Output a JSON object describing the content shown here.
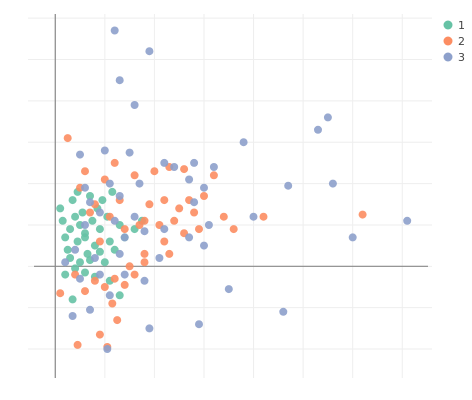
{
  "chart_data": {
    "type": "scatter",
    "title": "",
    "xlabel": "",
    "ylabel": "",
    "xlim": [
      -0.55,
      7.6
    ],
    "ylim": [
      -2.7,
      6.1
    ],
    "grid": true,
    "legend_position": "top-right",
    "series": [
      {
        "name": "1",
        "color": "#66c2a5",
        "points": [
          [
            0.1,
            1.4
          ],
          [
            0.15,
            1.1
          ],
          [
            0.2,
            0.7
          ],
          [
            0.25,
            0.4
          ],
          [
            0.3,
            0.9
          ],
          [
            0.35,
            1.6
          ],
          [
            0.4,
            1.2
          ],
          [
            0.3,
            0.2
          ],
          [
            0.45,
            0.6
          ],
          [
            0.5,
            1.0
          ],
          [
            0.55,
            1.3
          ],
          [
            0.6,
            0.8
          ],
          [
            0.65,
            0.3
          ],
          [
            0.7,
            1.7
          ],
          [
            0.75,
            1.1
          ],
          [
            0.8,
            0.5
          ],
          [
            0.85,
            1.4
          ],
          [
            0.9,
            0.9
          ],
          [
            0.95,
            1.6
          ],
          [
            1.0,
            0.1
          ],
          [
            1.05,
            1.2
          ],
          [
            1.1,
            0.6
          ],
          [
            1.15,
            1.8
          ],
          [
            0.2,
            -0.2
          ],
          [
            0.4,
            -0.05
          ],
          [
            0.6,
            -0.15
          ],
          [
            0.8,
            -0.25
          ],
          [
            0.5,
            0.1
          ],
          [
            0.7,
            0.15
          ],
          [
            1.2,
            0.4
          ],
          [
            1.3,
            1.0
          ],
          [
            1.4,
            0.7
          ],
          [
            1.6,
            0.9
          ],
          [
            1.75,
            1.1
          ],
          [
            1.1,
            -0.35
          ],
          [
            0.35,
            -0.8
          ],
          [
            1.3,
            -0.7
          ],
          [
            0.6,
            0.7
          ],
          [
            0.9,
            0.35
          ],
          [
            0.45,
            1.8
          ]
        ]
      },
      {
        "name": "2",
        "color": "#fc8d62",
        "points": [
          [
            0.25,
            3.1
          ],
          [
            0.5,
            1.9
          ],
          [
            0.6,
            2.3
          ],
          [
            0.8,
            1.5
          ],
          [
            0.9,
            0.6
          ],
          [
            1.0,
            2.1
          ],
          [
            1.1,
            1.2
          ],
          [
            1.2,
            2.5
          ],
          [
            1.3,
            1.6
          ],
          [
            1.4,
            0.9
          ],
          [
            1.5,
            0.0
          ],
          [
            1.6,
            2.2
          ],
          [
            1.7,
            1.0
          ],
          [
            1.8,
            0.3
          ],
          [
            1.9,
            1.5
          ],
          [
            2.0,
            2.3
          ],
          [
            2.1,
            1.0
          ],
          [
            2.2,
            0.6
          ],
          [
            2.3,
            2.4
          ],
          [
            2.4,
            1.1
          ],
          [
            2.5,
            1.4
          ],
          [
            2.6,
            0.8
          ],
          [
            2.7,
            1.6
          ],
          [
            2.8,
            1.3
          ],
          [
            2.9,
            0.9
          ],
          [
            3.0,
            1.7
          ],
          [
            3.2,
            2.2
          ],
          [
            3.4,
            1.2
          ],
          [
            3.6,
            0.9
          ],
          [
            0.1,
            -0.65
          ],
          [
            0.4,
            -0.2
          ],
          [
            0.6,
            -0.6
          ],
          [
            0.8,
            -0.35
          ],
          [
            1.0,
            -0.5
          ],
          [
            1.2,
            -0.3
          ],
          [
            1.4,
            -0.45
          ],
          [
            1.6,
            -0.2
          ],
          [
            1.8,
            0.1
          ],
          [
            0.45,
            -1.9
          ],
          [
            0.9,
            -1.65
          ],
          [
            1.05,
            -1.95
          ],
          [
            1.25,
            -1.3
          ],
          [
            1.15,
            -0.9
          ],
          [
            2.3,
            0.3
          ],
          [
            4.2,
            1.2
          ],
          [
            6.2,
            1.25
          ],
          [
            2.6,
            2.35
          ],
          [
            1.8,
            1.1
          ],
          [
            2.2,
            1.6
          ],
          [
            0.7,
            1.3
          ]
        ]
      },
      {
        "name": "3",
        "color": "#8da0cb",
        "points": [
          [
            1.2,
            5.7
          ],
          [
            1.9,
            5.2
          ],
          [
            1.3,
            4.5
          ],
          [
            1.6,
            3.9
          ],
          [
            2.4,
            2.4
          ],
          [
            5.5,
            3.6
          ],
          [
            5.3,
            3.3
          ],
          [
            3.8,
            3.0
          ],
          [
            0.5,
            2.7
          ],
          [
            1.0,
            2.8
          ],
          [
            1.5,
            2.75
          ],
          [
            2.2,
            2.5
          ],
          [
            2.8,
            2.5
          ],
          [
            3.2,
            2.4
          ],
          [
            2.7,
            2.1
          ],
          [
            3.0,
            1.9
          ],
          [
            1.7,
            2.0
          ],
          [
            0.6,
            1.9
          ],
          [
            1.1,
            2.0
          ],
          [
            1.3,
            1.7
          ],
          [
            4.7,
            1.95
          ],
          [
            5.6,
            2.0
          ],
          [
            7.1,
            1.1
          ],
          [
            6.0,
            0.7
          ],
          [
            4.0,
            1.2
          ],
          [
            2.8,
            1.55
          ],
          [
            1.6,
            1.2
          ],
          [
            0.6,
            1.0
          ],
          [
            0.9,
            1.3
          ],
          [
            1.2,
            1.1
          ],
          [
            1.4,
            0.7
          ],
          [
            2.2,
            0.9
          ],
          [
            2.7,
            0.7
          ],
          [
            3.1,
            1.0
          ],
          [
            0.4,
            0.4
          ],
          [
            0.8,
            0.2
          ],
          [
            1.3,
            0.3
          ],
          [
            2.1,
            0.2
          ],
          [
            3.0,
            0.5
          ],
          [
            0.2,
            0.1
          ],
          [
            0.5,
            -0.3
          ],
          [
            0.9,
            -0.2
          ],
          [
            1.4,
            -0.2
          ],
          [
            1.8,
            -0.35
          ],
          [
            0.35,
            -1.2
          ],
          [
            0.7,
            -1.05
          ],
          [
            1.1,
            -0.7
          ],
          [
            1.9,
            -1.5
          ],
          [
            2.9,
            -1.4
          ],
          [
            3.5,
            -0.55
          ],
          [
            4.6,
            -1.1
          ],
          [
            1.05,
            -2.0
          ],
          [
            0.7,
            1.55
          ],
          [
            1.8,
            0.85
          ]
        ]
      }
    ]
  }
}
